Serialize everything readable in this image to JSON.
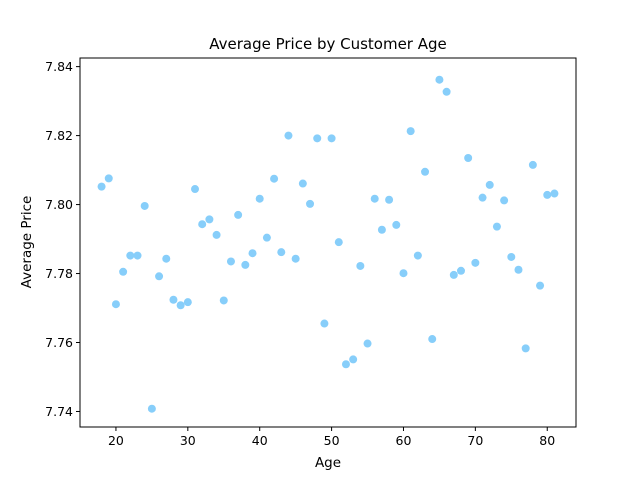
{
  "chart_data": {
    "type": "scatter",
    "title": "Average Price by Customer Age",
    "xlabel": "Age",
    "ylabel": "Average Price",
    "xlim": [
      15,
      84
    ],
    "ylim": [
      7.7355,
      7.8425
    ],
    "xticks": [
      20,
      30,
      40,
      50,
      60,
      70,
      80
    ],
    "yticks": [
      7.74,
      7.76,
      7.78,
      7.8,
      7.82,
      7.84
    ],
    "grid": false,
    "legend": "none",
    "marker_color": "#87cefa",
    "series": [
      {
        "x": [
          18,
          19,
          20,
          21,
          22,
          23,
          24,
          25,
          26,
          27,
          28,
          29,
          30,
          31,
          32,
          33,
          34,
          35,
          36,
          37,
          38,
          39,
          40,
          41,
          42,
          43,
          44,
          45,
          46,
          47,
          48,
          49,
          50,
          51,
          52,
          53,
          54,
          55,
          56,
          57,
          58,
          59,
          60,
          61,
          62,
          63,
          64,
          65,
          66,
          67,
          68,
          69,
          70,
          71,
          72,
          73,
          74,
          75,
          76,
          77,
          78,
          79,
          80,
          81
        ],
        "y": [
          7.8052,
          7.8076,
          7.7711,
          7.7805,
          7.7852,
          7.7852,
          7.7996,
          7.7408,
          7.7792,
          7.7843,
          7.7724,
          7.7708,
          7.7717,
          7.8045,
          7.7943,
          7.7957,
          7.7912,
          7.7722,
          7.7835,
          7.797,
          7.7825,
          7.7859,
          7.8017,
          7.7904,
          7.8075,
          7.7862,
          7.82,
          7.7843,
          7.8061,
          7.8002,
          7.8192,
          7.7655,
          7.8192,
          7.7891,
          7.7537,
          7.7551,
          7.7822,
          7.7597,
          7.8017,
          7.7927,
          7.8014,
          7.7941,
          7.7801,
          7.8213,
          7.7852,
          7.8095,
          7.761,
          7.8362,
          7.8327,
          7.7796,
          7.7808,
          7.8135,
          7.7831,
          7.802,
          7.8057,
          7.7936,
          7.8012,
          7.7848,
          7.7811,
          7.7583,
          7.8115,
          7.7765,
          7.8028,
          7.8032
        ]
      }
    ]
  }
}
